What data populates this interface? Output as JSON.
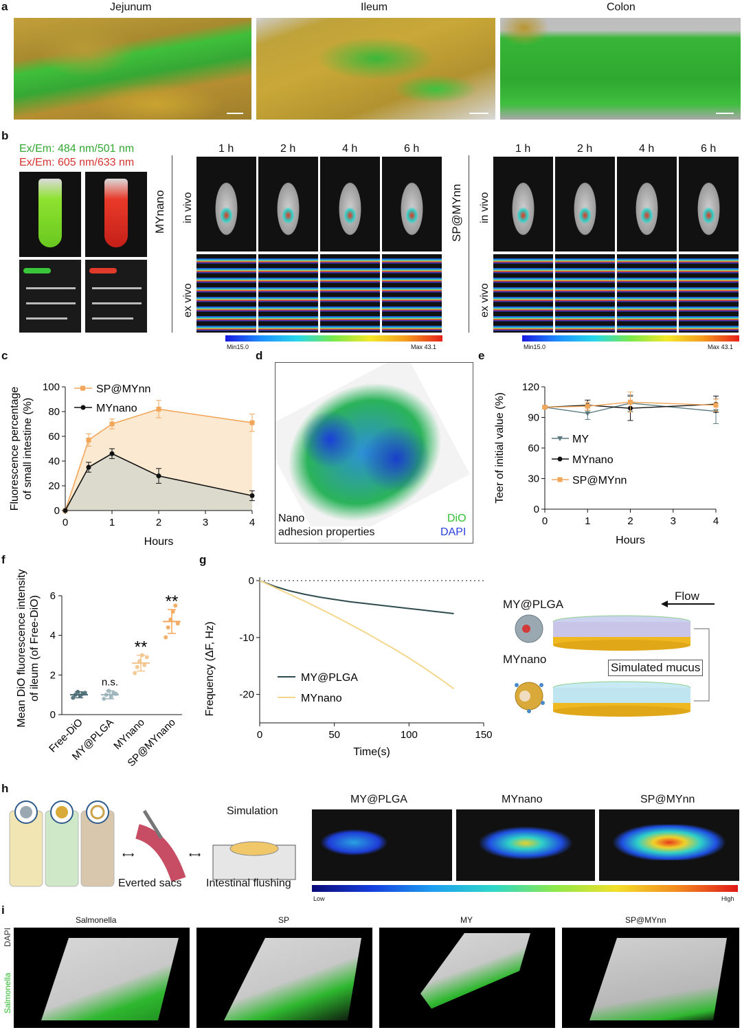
{
  "panels": {
    "a": {
      "label": "a",
      "titles": [
        "Jejunum",
        "Ileum",
        "Colon"
      ]
    },
    "b": {
      "label": "b",
      "ex_em_green": "Ex/Em: 484 nm/501 nm",
      "ex_em_red": "Ex/Em: 605 nm/633 nm",
      "group1": "MYnano",
      "group2": "SP@MYnn",
      "times": [
        "1 h",
        "2 h",
        "4 h",
        "6 h"
      ],
      "row_in": "in vivo",
      "row_ex": "ex vivo",
      "scale_min": "Min15.0",
      "scale_max": "Max 43.1"
    },
    "c": {
      "label": "c"
    },
    "d": {
      "label": "d",
      "caption1": "Nano",
      "caption2": "adhesion properties",
      "dio": "DiO",
      "dapi": "DAPI"
    },
    "e": {
      "label": "e"
    },
    "f": {
      "label": "f"
    },
    "g": {
      "label": "g",
      "flow": "Flow",
      "item1": "MY@PLGA",
      "item2": "MYnano",
      "mucus": "Simulated mucus"
    },
    "h": {
      "label": "h",
      "step1": "Everted sacs",
      "step2_top": "Simulation",
      "step2": "Intestinal flushing",
      "groups": [
        "MY@PLGA",
        "MYnano",
        "SP@MYnn"
      ],
      "low": "Low",
      "high": "High"
    },
    "i": {
      "label": "i",
      "groups": [
        "Salmonella",
        "SP",
        "MY",
        "SP@MYnn"
      ],
      "ylabel_green": "Salmonella",
      "ylabel_white": "DAPI"
    }
  },
  "colors": {
    "orange": "#f2a65a",
    "black": "#111111",
    "slate": "#5b7a80",
    "green": "#2fb82f",
    "gold": "#d9b02a",
    "dark": "#000000"
  },
  "chart_data": [
    {
      "id": "c",
      "type": "line",
      "xlabel": "Hours",
      "ylabel": "Fluorescence percentage of small intestine (%)",
      "xlim": [
        0,
        4
      ],
      "ylim": [
        0,
        100
      ],
      "xticks": [
        0,
        1,
        2,
        3,
        4
      ],
      "yticks": [
        0,
        20,
        40,
        60,
        80,
        100
      ],
      "x": [
        0,
        0.5,
        1,
        2,
        4
      ],
      "series": [
        {
          "name": "SP@MYnn",
          "values": [
            0,
            57,
            70,
            82,
            71
          ],
          "err": [
            0,
            5,
            4,
            7,
            7
          ]
        },
        {
          "name": "MYnano",
          "values": [
            0,
            35,
            46,
            28,
            12
          ],
          "err": [
            0,
            4,
            4,
            6,
            4
          ]
        }
      ],
      "legend": "top-left"
    },
    {
      "id": "e",
      "type": "line",
      "xlabel": "Hours",
      "ylabel": "Teer of initial value (%)",
      "xlim": [
        0,
        4
      ],
      "ylim": [
        0,
        120
      ],
      "xticks": [
        0,
        1,
        2,
        3,
        4
      ],
      "yticks": [
        0,
        30,
        60,
        90,
        120
      ],
      "x": [
        0,
        1,
        2,
        4
      ],
      "series": [
        {
          "name": "MY",
          "values": [
            100,
            94,
            104,
            96
          ],
          "err": [
            1,
            6,
            8,
            12
          ]
        },
        {
          "name": "MYnano",
          "values": [
            100,
            102,
            99,
            103
          ],
          "err": [
            1,
            5,
            12,
            8
          ]
        },
        {
          "name": "SP@MYnn",
          "values": [
            100,
            101,
            105,
            102
          ],
          "err": [
            1,
            4,
            10,
            6
          ]
        }
      ],
      "legend": "bottom-left"
    },
    {
      "id": "f",
      "type": "scatter",
      "ylabel": "Mean DiO fluorescence intensity of ileum (of Free-DiO)",
      "ylim": [
        0,
        6
      ],
      "yticks": [
        0,
        2,
        4,
        6
      ],
      "categories": [
        "Free-DiO",
        "MY@PLGA",
        "MYnano",
        "SP@MYnano"
      ],
      "means": [
        1.0,
        1.0,
        2.6,
        4.7
      ],
      "sd": [
        0.15,
        0.2,
        0.4,
        0.6
      ],
      "points": [
        [
          0.85,
          1.0,
          1.15,
          0.95,
          1.05,
          1.1
        ],
        [
          0.8,
          1.0,
          1.2,
          0.9,
          1.1,
          1.05
        ],
        [
          2.1,
          2.4,
          2.7,
          3.0,
          2.5,
          2.9
        ],
        [
          3.9,
          4.4,
          4.8,
          5.2,
          5.5,
          4.6
        ]
      ],
      "annotations": [
        "",
        "n.s.",
        "**",
        "**"
      ]
    },
    {
      "id": "g",
      "type": "line",
      "xlabel": "Time(s)",
      "ylabel": "Frequency (ΔF, Hz)",
      "xlim": [
        0,
        150
      ],
      "ylim": [
        -25,
        0
      ],
      "xticks": [
        0,
        50,
        100,
        150
      ],
      "yticks": [
        0,
        -10,
        -20
      ],
      "x": [
        0,
        10,
        20,
        30,
        40,
        50,
        60,
        70,
        80,
        90,
        100,
        110,
        120,
        130
      ],
      "series": [
        {
          "name": "MY@PLGA",
          "values": [
            0,
            -1.0,
            -1.8,
            -2.4,
            -2.9,
            -3.3,
            -3.7,
            -4.0,
            -4.3,
            -4.6,
            -4.9,
            -5.2,
            -5.5,
            -5.8
          ]
        },
        {
          "name": "MYnano",
          "values": [
            0,
            -1.2,
            -2.4,
            -3.6,
            -4.9,
            -6.2,
            -7.6,
            -9.0,
            -10.5,
            -12.0,
            -13.6,
            -15.3,
            -17.1,
            -19.0
          ]
        }
      ],
      "legend": "bottom-left"
    }
  ]
}
